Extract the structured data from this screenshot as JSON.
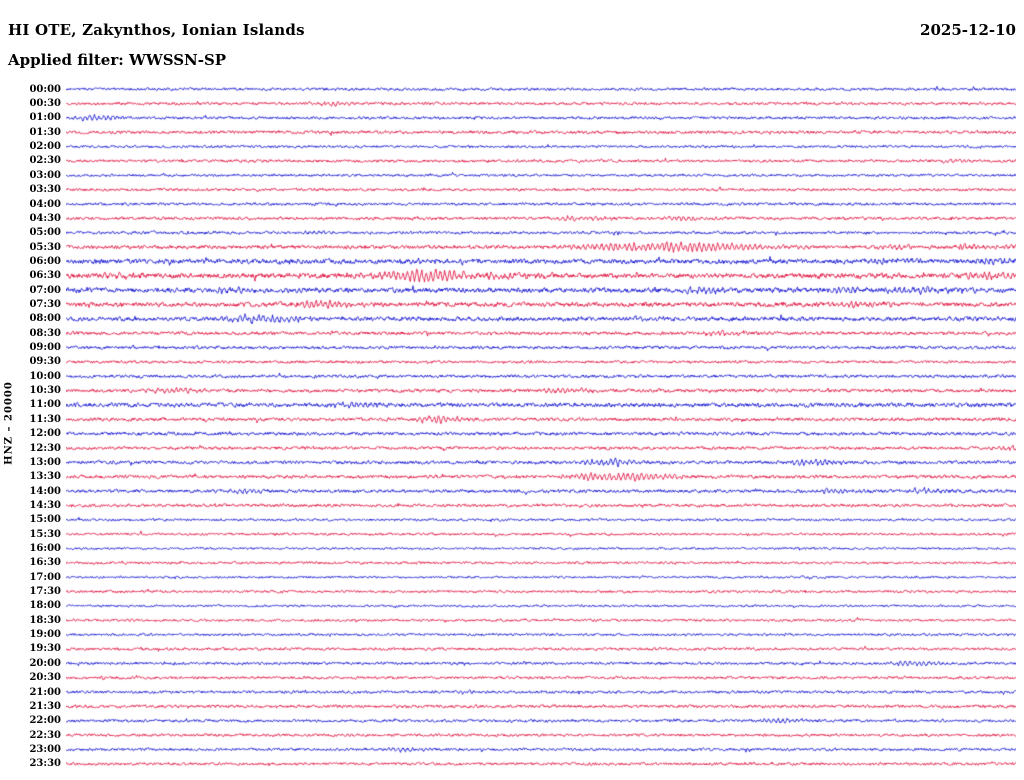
{
  "header": {
    "station_title": "HI OTE, Zakynthos, Ionian Islands",
    "date": "2025-12-10",
    "filter_line": "Applied filter: WWSSN-SP"
  },
  "axis": {
    "channel_scale_label": "HNZ – 20000"
  },
  "chart_data": {
    "type": "line",
    "subtype": "helicorder-seismogram",
    "title": "HI OTE, Zakynthos, Ionian Islands",
    "date": "2025-12-10",
    "filter": "WWSSN-SP",
    "y_axis_label": "HNZ – 20000",
    "row_interval_minutes": 30,
    "rows_count": 48,
    "minutes_per_row": 30,
    "legend": "none",
    "grid": false,
    "trace_colors": {
      "blue": "#0000cd",
      "red": "#dd0033"
    },
    "rows": [
      {
        "time": "00:00",
        "color": "blue",
        "noise": 1.0,
        "events": []
      },
      {
        "time": "00:30",
        "color": "red",
        "noise": 1.0,
        "events": [
          [
            0.27,
            1.8,
            14
          ]
        ]
      },
      {
        "time": "01:00",
        "color": "blue",
        "noise": 1.0,
        "events": [
          [
            0.025,
            3.2,
            10
          ]
        ]
      },
      {
        "time": "01:30",
        "color": "red",
        "noise": 1.1,
        "events": []
      },
      {
        "time": "02:00",
        "color": "blue",
        "noise": 0.9,
        "events": []
      },
      {
        "time": "02:30",
        "color": "red",
        "noise": 1.0,
        "events": [
          [
            0.93,
            1.6,
            10
          ]
        ]
      },
      {
        "time": "03:00",
        "color": "blue",
        "noise": 0.9,
        "events": []
      },
      {
        "time": "03:30",
        "color": "red",
        "noise": 1.0,
        "events": []
      },
      {
        "time": "04:00",
        "color": "blue",
        "noise": 1.0,
        "events": []
      },
      {
        "time": "04:30",
        "color": "red",
        "noise": 1.1,
        "events": [
          [
            0.53,
            2.6,
            18
          ],
          [
            0.645,
            2.0,
            12
          ]
        ]
      },
      {
        "time": "05:00",
        "color": "blue",
        "noise": 1.0,
        "events": [
          [
            0.26,
            1.6,
            10
          ]
        ]
      },
      {
        "time": "05:30",
        "color": "red",
        "noise": 1.3,
        "events": [
          [
            0.58,
            3.4,
            45
          ],
          [
            0.655,
            2.8,
            30
          ],
          [
            0.87,
            1.8,
            12
          ],
          [
            0.95,
            2.2,
            14
          ]
        ]
      },
      {
        "time": "06:00",
        "color": "blue",
        "noise": 1.7,
        "events": [
          [
            0.38,
            2.0,
            18
          ],
          [
            0.86,
            2.0,
            14
          ],
          [
            0.97,
            2.6,
            12
          ]
        ]
      },
      {
        "time": "06:30",
        "color": "red",
        "noise": 1.8,
        "events": [
          [
            0.05,
            2.2,
            12
          ],
          [
            0.33,
            3.0,
            26
          ],
          [
            0.373,
            5.6,
            16
          ],
          [
            0.46,
            2.6,
            22
          ],
          [
            0.96,
            2.6,
            14
          ]
        ]
      },
      {
        "time": "07:00",
        "color": "blue",
        "noise": 1.7,
        "events": [
          [
            0.167,
            2.6,
            16
          ],
          [
            0.667,
            3.0,
            14
          ],
          [
            0.815,
            2.4,
            12
          ],
          [
            0.883,
            3.0,
            16
          ]
        ]
      },
      {
        "time": "07:30",
        "color": "red",
        "noise": 1.6,
        "events": [
          [
            0.262,
            3.0,
            18
          ],
          [
            0.83,
            2.6,
            16
          ]
        ]
      },
      {
        "time": "08:00",
        "color": "blue",
        "noise": 1.5,
        "events": [
          [
            0.194,
            4.0,
            20
          ],
          [
            0.6,
            1.6,
            12
          ]
        ]
      },
      {
        "time": "08:30",
        "color": "red",
        "noise": 1.2,
        "events": [
          [
            0.678,
            2.6,
            14
          ]
        ]
      },
      {
        "time": "09:00",
        "color": "blue",
        "noise": 1.1,
        "events": []
      },
      {
        "time": "09:30",
        "color": "red",
        "noise": 1.0,
        "events": []
      },
      {
        "time": "10:00",
        "color": "blue",
        "noise": 1.1,
        "events": []
      },
      {
        "time": "10:30",
        "color": "red",
        "noise": 1.2,
        "events": [
          [
            0.104,
            3.0,
            14
          ],
          [
            0.52,
            2.4,
            16
          ]
        ]
      },
      {
        "time": "11:00",
        "color": "blue",
        "noise": 1.5,
        "events": [
          [
            0.294,
            2.4,
            14
          ]
        ]
      },
      {
        "time": "11:30",
        "color": "red",
        "noise": 1.2,
        "events": [
          [
            0.383,
            3.4,
            14
          ]
        ]
      },
      {
        "time": "12:00",
        "color": "blue",
        "noise": 1.2,
        "events": []
      },
      {
        "time": "12:30",
        "color": "red",
        "noise": 1.1,
        "events": [
          [
            0.98,
            1.8,
            10
          ]
        ]
      },
      {
        "time": "13:00",
        "color": "blue",
        "noise": 1.2,
        "events": [
          [
            0.55,
            2.4,
            11
          ],
          [
            0.583,
            2.4,
            11
          ],
          [
            0.778,
            3.0,
            12
          ]
        ]
      },
      {
        "time": "13:30",
        "color": "red",
        "noise": 1.2,
        "events": [
          [
            0.555,
            3.4,
            22
          ],
          [
            0.6,
            2.4,
            16
          ]
        ]
      },
      {
        "time": "14:00",
        "color": "blue",
        "noise": 1.2,
        "events": [
          [
            0.183,
            2.0,
            11
          ],
          [
            0.8,
            2.4,
            12
          ],
          [
            0.9,
            2.4,
            12
          ]
        ]
      },
      {
        "time": "14:30",
        "color": "red",
        "noise": 1.1,
        "events": []
      },
      {
        "time": "15:00",
        "color": "blue",
        "noise": 0.9,
        "events": []
      },
      {
        "time": "15:30",
        "color": "red",
        "noise": 0.9,
        "events": []
      },
      {
        "time": "16:00",
        "color": "blue",
        "noise": 0.8,
        "events": []
      },
      {
        "time": "16:30",
        "color": "red",
        "noise": 0.9,
        "events": []
      },
      {
        "time": "17:00",
        "color": "blue",
        "noise": 0.8,
        "events": []
      },
      {
        "time": "17:30",
        "color": "red",
        "noise": 0.9,
        "events": []
      },
      {
        "time": "18:00",
        "color": "blue",
        "noise": 0.8,
        "events": []
      },
      {
        "time": "18:30",
        "color": "red",
        "noise": 0.9,
        "events": []
      },
      {
        "time": "19:00",
        "color": "blue",
        "noise": 0.9,
        "events": []
      },
      {
        "time": "19:30",
        "color": "red",
        "noise": 1.0,
        "events": []
      },
      {
        "time": "20:00",
        "color": "blue",
        "noise": 1.0,
        "events": [
          [
            0.883,
            2.4,
            14
          ]
        ]
      },
      {
        "time": "20:30",
        "color": "red",
        "noise": 1.0,
        "events": []
      },
      {
        "time": "21:00",
        "color": "blue",
        "noise": 1.0,
        "events": [
          [
            0.42,
            1.5,
            9
          ]
        ]
      },
      {
        "time": "21:30",
        "color": "red",
        "noise": 1.1,
        "events": []
      },
      {
        "time": "22:00",
        "color": "blue",
        "noise": 1.0,
        "events": [
          [
            0.746,
            2.4,
            13
          ]
        ]
      },
      {
        "time": "22:30",
        "color": "red",
        "noise": 1.0,
        "events": []
      },
      {
        "time": "23:00",
        "color": "blue",
        "noise": 1.0,
        "events": [
          [
            0.35,
            1.8,
            10
          ]
        ]
      },
      {
        "time": "23:30",
        "color": "red",
        "noise": 1.0,
        "events": []
      }
    ]
  }
}
